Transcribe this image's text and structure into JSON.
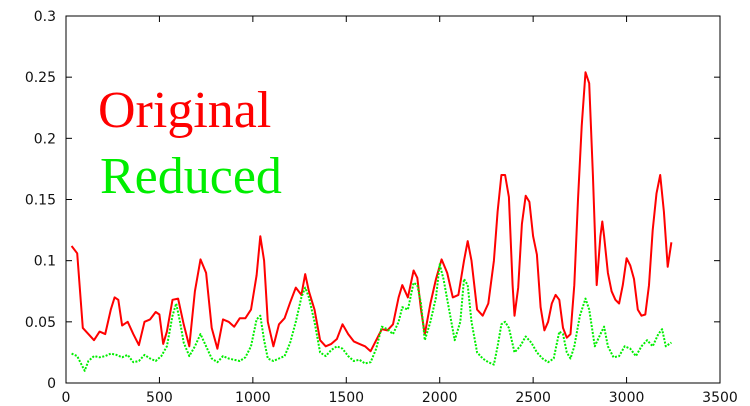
{
  "chart_data": {
    "type": "line",
    "title": "",
    "xlabel": "",
    "ylabel": "",
    "xlim": [
      0,
      3500
    ],
    "ylim": [
      0,
      0.3
    ],
    "x_ticks": [
      0,
      500,
      1000,
      1500,
      2000,
      2500,
      3000,
      3500
    ],
    "y_ticks": [
      0,
      0.05,
      0.1,
      0.15,
      0.2,
      0.25,
      0.3
    ],
    "x_tick_labels": [
      "0",
      "500",
      "1000",
      "1500",
      "2000",
      "2500",
      "3000",
      "3500"
    ],
    "y_tick_labels": [
      "0",
      "0.05",
      "0.1",
      "0.15",
      "0.2",
      "0.25",
      "0.3"
    ],
    "grid": false,
    "legend_position": "top-left",
    "series": [
      {
        "name": "Original",
        "color": "#ff0000",
        "style": "solid",
        "points": [
          [
            30,
            0.112
          ],
          [
            60,
            0.106
          ],
          [
            90,
            0.045
          ],
          [
            120,
            0.04
          ],
          [
            150,
            0.035
          ],
          [
            180,
            0.042
          ],
          [
            210,
            0.04
          ],
          [
            240,
            0.06
          ],
          [
            260,
            0.07
          ],
          [
            280,
            0.068
          ],
          [
            300,
            0.047
          ],
          [
            330,
            0.05
          ],
          [
            360,
            0.04
          ],
          [
            390,
            0.031
          ],
          [
            420,
            0.05
          ],
          [
            450,
            0.052
          ],
          [
            480,
            0.058
          ],
          [
            500,
            0.056
          ],
          [
            520,
            0.032
          ],
          [
            540,
            0.042
          ],
          [
            570,
            0.068
          ],
          [
            600,
            0.069
          ],
          [
            630,
            0.048
          ],
          [
            660,
            0.03
          ],
          [
            690,
            0.075
          ],
          [
            720,
            0.101
          ],
          [
            750,
            0.09
          ],
          [
            780,
            0.045
          ],
          [
            810,
            0.028
          ],
          [
            840,
            0.052
          ],
          [
            870,
            0.05
          ],
          [
            900,
            0.046
          ],
          [
            930,
            0.053
          ],
          [
            960,
            0.053
          ],
          [
            990,
            0.06
          ],
          [
            1020,
            0.088
          ],
          [
            1040,
            0.12
          ],
          [
            1060,
            0.1
          ],
          [
            1080,
            0.05
          ],
          [
            1110,
            0.03
          ],
          [
            1140,
            0.048
          ],
          [
            1170,
            0.053
          ],
          [
            1200,
            0.066
          ],
          [
            1230,
            0.078
          ],
          [
            1260,
            0.072
          ],
          [
            1280,
            0.089
          ],
          [
            1300,
            0.075
          ],
          [
            1330,
            0.06
          ],
          [
            1360,
            0.035
          ],
          [
            1390,
            0.03
          ],
          [
            1420,
            0.032
          ],
          [
            1450,
            0.036
          ],
          [
            1480,
            0.048
          ],
          [
            1510,
            0.04
          ],
          [
            1540,
            0.034
          ],
          [
            1570,
            0.032
          ],
          [
            1600,
            0.03
          ],
          [
            1630,
            0.026
          ],
          [
            1660,
            0.035
          ],
          [
            1690,
            0.044
          ],
          [
            1720,
            0.043
          ],
          [
            1750,
            0.048
          ],
          [
            1780,
            0.07
          ],
          [
            1800,
            0.08
          ],
          [
            1830,
            0.07
          ],
          [
            1860,
            0.092
          ],
          [
            1880,
            0.086
          ],
          [
            1900,
            0.06
          ],
          [
            1920,
            0.04
          ],
          [
            1950,
            0.065
          ],
          [
            1980,
            0.085
          ],
          [
            2010,
            0.101
          ],
          [
            2040,
            0.09
          ],
          [
            2070,
            0.07
          ],
          [
            2100,
            0.072
          ],
          [
            2130,
            0.1
          ],
          [
            2150,
            0.116
          ],
          [
            2170,
            0.1
          ],
          [
            2200,
            0.06
          ],
          [
            2230,
            0.055
          ],
          [
            2260,
            0.065
          ],
          [
            2290,
            0.1
          ],
          [
            2310,
            0.14
          ],
          [
            2330,
            0.17
          ],
          [
            2350,
            0.17
          ],
          [
            2370,
            0.152
          ],
          [
            2390,
            0.08
          ],
          [
            2400,
            0.055
          ],
          [
            2420,
            0.078
          ],
          [
            2440,
            0.13
          ],
          [
            2460,
            0.153
          ],
          [
            2480,
            0.148
          ],
          [
            2500,
            0.12
          ],
          [
            2520,
            0.105
          ],
          [
            2540,
            0.062
          ],
          [
            2560,
            0.043
          ],
          [
            2580,
            0.05
          ],
          [
            2600,
            0.065
          ],
          [
            2620,
            0.072
          ],
          [
            2640,
            0.068
          ],
          [
            2660,
            0.045
          ],
          [
            2680,
            0.037
          ],
          [
            2700,
            0.04
          ],
          [
            2720,
            0.08
          ],
          [
            2740,
            0.15
          ],
          [
            2760,
            0.21
          ],
          [
            2780,
            0.254
          ],
          [
            2800,
            0.245
          ],
          [
            2820,
            0.17
          ],
          [
            2840,
            0.08
          ],
          [
            2860,
            0.12
          ],
          [
            2870,
            0.132
          ],
          [
            2880,
            0.12
          ],
          [
            2900,
            0.09
          ],
          [
            2920,
            0.075
          ],
          [
            2940,
            0.068
          ],
          [
            2960,
            0.065
          ],
          [
            2980,
            0.08
          ],
          [
            3000,
            0.102
          ],
          [
            3020,
            0.096
          ],
          [
            3040,
            0.085
          ],
          [
            3060,
            0.06
          ],
          [
            3080,
            0.055
          ],
          [
            3100,
            0.056
          ],
          [
            3120,
            0.08
          ],
          [
            3140,
            0.125
          ],
          [
            3160,
            0.155
          ],
          [
            3180,
            0.17
          ],
          [
            3200,
            0.14
          ],
          [
            3220,
            0.095
          ],
          [
            3240,
            0.115
          ]
        ]
      },
      {
        "name": "Reduced",
        "color": "#00ee00",
        "style": "dotted",
        "points": [
          [
            30,
            0.024
          ],
          [
            60,
            0.022
          ],
          [
            80,
            0.016
          ],
          [
            100,
            0.01
          ],
          [
            120,
            0.018
          ],
          [
            150,
            0.022
          ],
          [
            180,
            0.021
          ],
          [
            210,
            0.022
          ],
          [
            240,
            0.024
          ],
          [
            270,
            0.023
          ],
          [
            300,
            0.021
          ],
          [
            330,
            0.023
          ],
          [
            360,
            0.017
          ],
          [
            390,
            0.018
          ],
          [
            420,
            0.023
          ],
          [
            450,
            0.02
          ],
          [
            480,
            0.018
          ],
          [
            510,
            0.022
          ],
          [
            540,
            0.03
          ],
          [
            570,
            0.055
          ],
          [
            590,
            0.065
          ],
          [
            610,
            0.05
          ],
          [
            630,
            0.033
          ],
          [
            660,
            0.022
          ],
          [
            690,
            0.03
          ],
          [
            720,
            0.04
          ],
          [
            750,
            0.03
          ],
          [
            780,
            0.02
          ],
          [
            810,
            0.017
          ],
          [
            840,
            0.022
          ],
          [
            870,
            0.02
          ],
          [
            900,
            0.019
          ],
          [
            930,
            0.018
          ],
          [
            960,
            0.021
          ],
          [
            990,
            0.03
          ],
          [
            1020,
            0.052
          ],
          [
            1040,
            0.055
          ],
          [
            1060,
            0.035
          ],
          [
            1080,
            0.02
          ],
          [
            1110,
            0.018
          ],
          [
            1140,
            0.02
          ],
          [
            1170,
            0.022
          ],
          [
            1200,
            0.033
          ],
          [
            1230,
            0.05
          ],
          [
            1260,
            0.07
          ],
          [
            1280,
            0.078
          ],
          [
            1300,
            0.07
          ],
          [
            1330,
            0.05
          ],
          [
            1360,
            0.025
          ],
          [
            1390,
            0.022
          ],
          [
            1420,
            0.027
          ],
          [
            1450,
            0.03
          ],
          [
            1480,
            0.028
          ],
          [
            1510,
            0.022
          ],
          [
            1540,
            0.018
          ],
          [
            1570,
            0.019
          ],
          [
            1600,
            0.016
          ],
          [
            1630,
            0.017
          ],
          [
            1660,
            0.028
          ],
          [
            1690,
            0.046
          ],
          [
            1720,
            0.044
          ],
          [
            1750,
            0.04
          ],
          [
            1780,
            0.05
          ],
          [
            1800,
            0.062
          ],
          [
            1830,
            0.06
          ],
          [
            1860,
            0.082
          ],
          [
            1880,
            0.08
          ],
          [
            1900,
            0.065
          ],
          [
            1920,
            0.035
          ],
          [
            1950,
            0.05
          ],
          [
            1980,
            0.07
          ],
          [
            2000,
            0.097
          ],
          [
            2020,
            0.085
          ],
          [
            2050,
            0.06
          ],
          [
            2080,
            0.035
          ],
          [
            2110,
            0.05
          ],
          [
            2130,
            0.085
          ],
          [
            2150,
            0.08
          ],
          [
            2170,
            0.05
          ],
          [
            2200,
            0.025
          ],
          [
            2230,
            0.02
          ],
          [
            2260,
            0.017
          ],
          [
            2290,
            0.015
          ],
          [
            2310,
            0.03
          ],
          [
            2330,
            0.048
          ],
          [
            2350,
            0.05
          ],
          [
            2370,
            0.045
          ],
          [
            2400,
            0.025
          ],
          [
            2430,
            0.03
          ],
          [
            2460,
            0.038
          ],
          [
            2490,
            0.033
          ],
          [
            2520,
            0.025
          ],
          [
            2550,
            0.02
          ],
          [
            2580,
            0.017
          ],
          [
            2610,
            0.02
          ],
          [
            2640,
            0.042
          ],
          [
            2660,
            0.04
          ],
          [
            2680,
            0.025
          ],
          [
            2700,
            0.02
          ],
          [
            2720,
            0.03
          ],
          [
            2750,
            0.055
          ],
          [
            2780,
            0.069
          ],
          [
            2800,
            0.06
          ],
          [
            2830,
            0.03
          ],
          [
            2860,
            0.04
          ],
          [
            2880,
            0.046
          ],
          [
            2900,
            0.03
          ],
          [
            2930,
            0.021
          ],
          [
            2960,
            0.022
          ],
          [
            2990,
            0.03
          ],
          [
            3020,
            0.028
          ],
          [
            3050,
            0.022
          ],
          [
            3080,
            0.03
          ],
          [
            3110,
            0.035
          ],
          [
            3140,
            0.03
          ],
          [
            3170,
            0.04
          ],
          [
            3190,
            0.044
          ],
          [
            3210,
            0.03
          ],
          [
            3240,
            0.033
          ]
        ]
      }
    ]
  }
}
